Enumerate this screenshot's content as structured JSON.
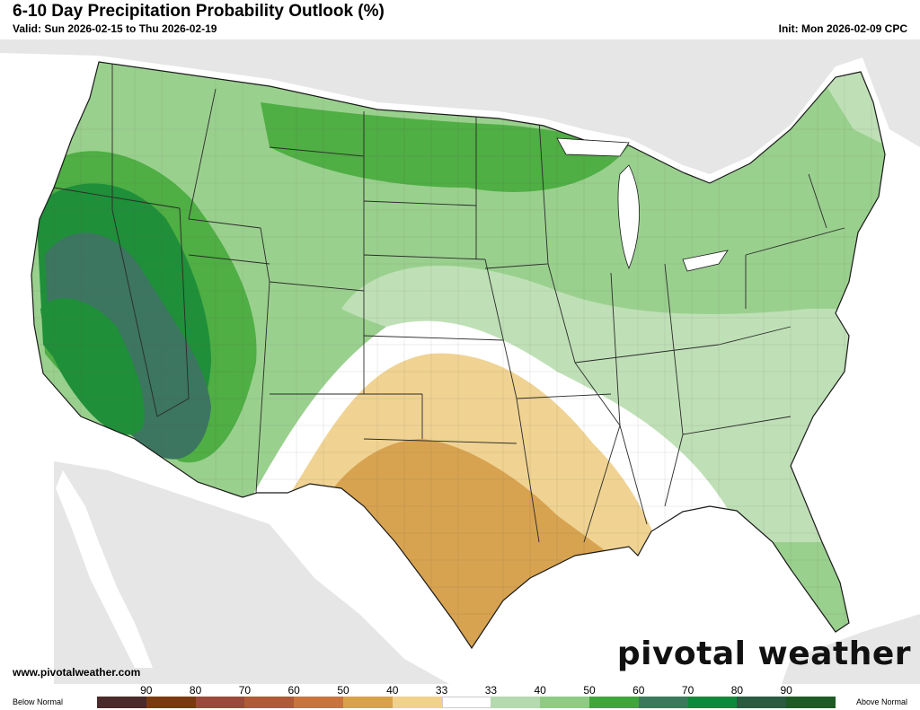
{
  "header": {
    "title": "6-10 Day Precipitation Probability Outlook (%)",
    "valid": "Valid: Sun 2026-02-15 to Thu 2026-02-19",
    "init": "Init: Mon 2026-02-09 CPC"
  },
  "footer": {
    "website": "www.pivotalweather.com",
    "logo_text": "pivotal weather"
  },
  "legend": {
    "below_label": "Below Normal",
    "above_label": "Above Normal",
    "ticks": [
      "90",
      "80",
      "70",
      "60",
      "50",
      "40",
      "33",
      "33",
      "40",
      "50",
      "60",
      "70",
      "80",
      "90"
    ],
    "colors": [
      "#4a2a2a",
      "#7a3a10",
      "#9a4a3a",
      "#b05a38",
      "#c8743c",
      "#d9a24a",
      "#f0d28c",
      "#ffffff",
      "#b5dab0",
      "#8fcb84",
      "#3fa63c",
      "#3a7a5a",
      "#0e8a3a",
      "#2a5a40",
      "#1e5a24"
    ]
  },
  "map": {
    "colors": {
      "land": "#e6e6e6",
      "water": "#ffffff",
      "green_33": "#bfe0b6",
      "green_40": "#9ad08e",
      "green_50": "#4fae44",
      "green_60": "#1f8f3a",
      "green_70": "#3c7560",
      "tan_33": "#f0d392",
      "tan_40": "#d8a350"
    }
  }
}
